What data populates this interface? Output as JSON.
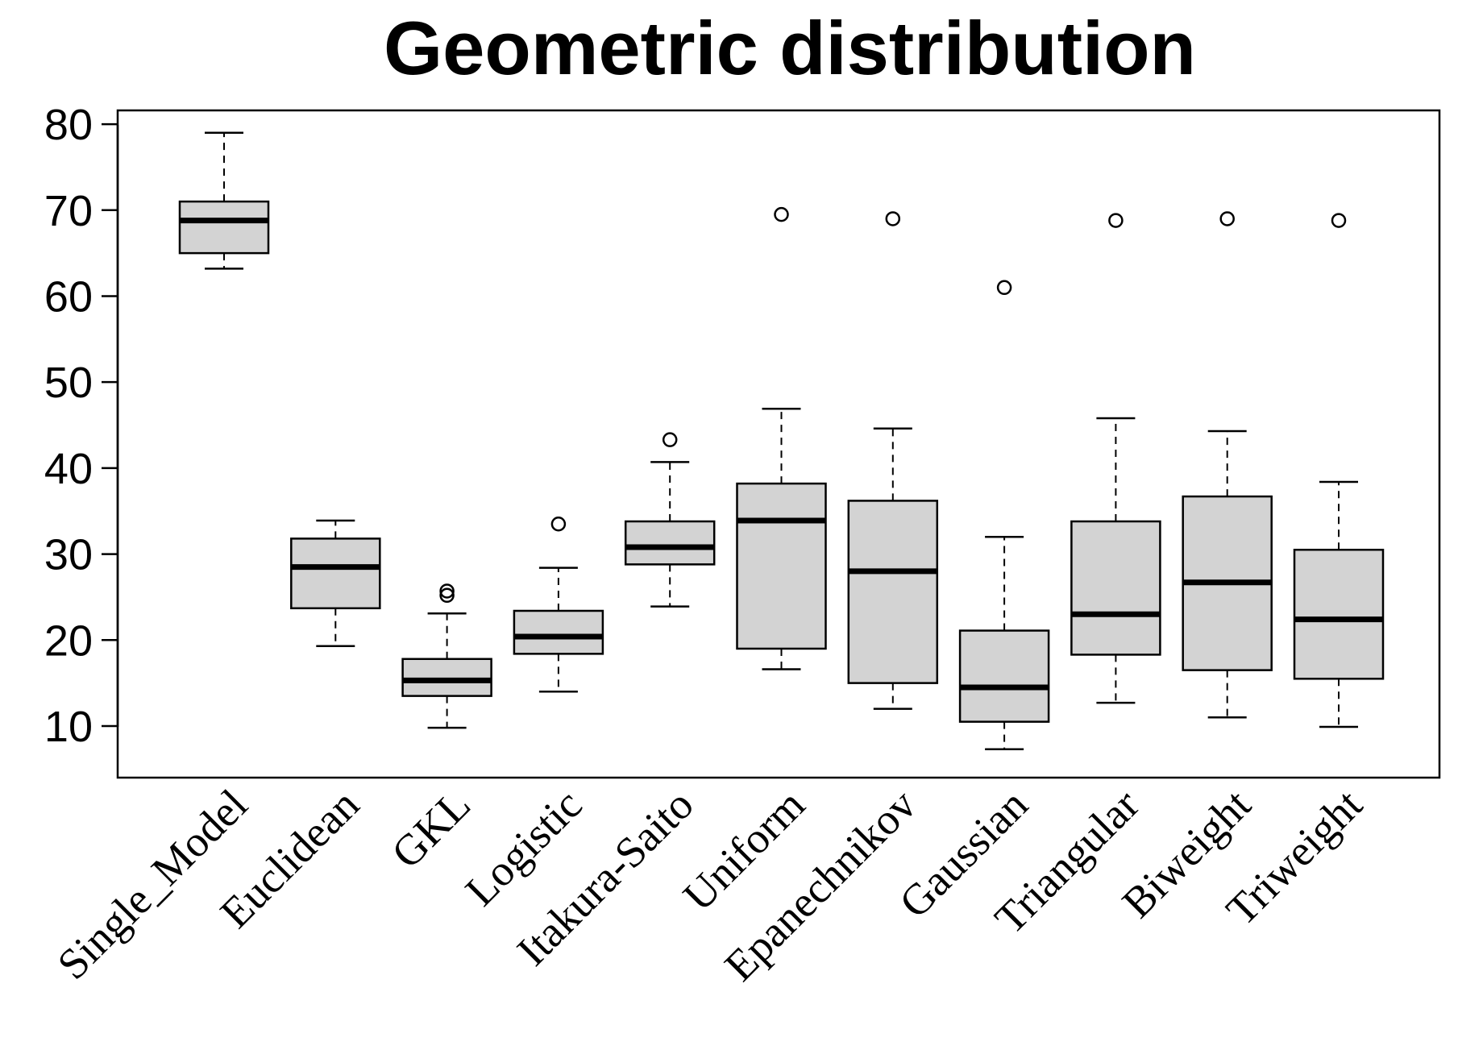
{
  "chart_data": {
    "type": "boxplot",
    "title": "Geometric distribution",
    "xlabel": "",
    "ylabel": "",
    "ylim": [
      4,
      81.6
    ],
    "yticks": [
      10,
      20,
      30,
      40,
      50,
      60,
      70,
      80
    ],
    "grid": false,
    "legend": "none",
    "colors": {
      "box_fill": "#d3d3d3",
      "stroke": "#000000"
    },
    "categories": [
      "Single_Model",
      "Euclidean",
      "GKL",
      "Logistic",
      "Itakura-Saito",
      "Uniform",
      "Epanechnikov",
      "Gaussian",
      "Triangular",
      "Biweight",
      "Triweight"
    ],
    "boxes": [
      {
        "name": "Single_Model",
        "min": 63.2,
        "q1": 65.0,
        "median": 68.8,
        "q3": 71.0,
        "max": 79.0,
        "outliers": []
      },
      {
        "name": "Euclidean",
        "min": 19.3,
        "q1": 23.7,
        "median": 28.5,
        "q3": 31.8,
        "max": 33.9,
        "outliers": []
      },
      {
        "name": "GKL",
        "min": 9.8,
        "q1": 13.5,
        "median": 15.3,
        "q3": 17.8,
        "max": 23.1,
        "outliers": [
          25.2,
          25.7
        ]
      },
      {
        "name": "Logistic",
        "min": 14.0,
        "q1": 18.4,
        "median": 20.4,
        "q3": 23.4,
        "max": 28.4,
        "outliers": [
          33.5
        ]
      },
      {
        "name": "Itakura-Saito",
        "min": 23.9,
        "q1": 28.8,
        "median": 30.8,
        "q3": 33.8,
        "max": 40.7,
        "outliers": [
          43.3
        ]
      },
      {
        "name": "Uniform",
        "min": 16.6,
        "q1": 19.0,
        "median": 33.9,
        "q3": 38.2,
        "max": 46.9,
        "outliers": [
          69.5
        ]
      },
      {
        "name": "Epanechnikov",
        "min": 12.0,
        "q1": 15.0,
        "median": 28.0,
        "q3": 36.2,
        "max": 44.6,
        "outliers": [
          69.0
        ]
      },
      {
        "name": "Gaussian",
        "min": 7.3,
        "q1": 10.5,
        "median": 14.5,
        "q3": 21.1,
        "max": 32.0,
        "outliers": [
          61.0
        ]
      },
      {
        "name": "Triangular",
        "min": 12.7,
        "q1": 18.3,
        "median": 23.0,
        "q3": 33.8,
        "max": 45.8,
        "outliers": [
          68.8
        ]
      },
      {
        "name": "Biweight",
        "min": 11.0,
        "q1": 16.5,
        "median": 26.7,
        "q3": 36.7,
        "max": 44.3,
        "outliers": [
          69.0
        ]
      },
      {
        "name": "Triweight",
        "min": 9.9,
        "q1": 15.5,
        "median": 22.4,
        "q3": 30.5,
        "max": 38.4,
        "outliers": [
          68.8
        ]
      }
    ]
  }
}
